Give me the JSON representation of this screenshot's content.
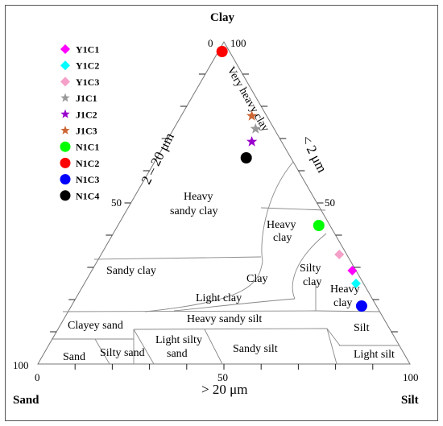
{
  "chart_data": {
    "type": "scatter",
    "subtype": "ternary",
    "corners": {
      "top": "Clay",
      "left": "Sand",
      "right": "Silt"
    },
    "axis_titles": {
      "left": "2 – 20 μm",
      "right": "< 2 μm",
      "bottom": "> 20 μm"
    },
    "tick_labels": {
      "top_left": "0",
      "top_right": "100",
      "left_mid": "50",
      "right_mid": "50",
      "bottom_left_outer": "100",
      "bottom_left": "0",
      "bottom_mid": "50",
      "bottom_right": "100"
    },
    "regions": [
      {
        "name": "Very heavy clay",
        "rotated": true
      },
      {
        "name": "Heavy",
        "name2": "sandy clay"
      },
      {
        "name": "Heavy",
        "name2": "clay"
      },
      {
        "name": "Sandy clay"
      },
      {
        "name": "Clay"
      },
      {
        "name": "Silty",
        "name2": "clay"
      },
      {
        "name": "Heavy",
        "name2": "clay"
      },
      {
        "name": "Light clay"
      },
      {
        "name": "Clayey sand"
      },
      {
        "name": "Heavy sandy silt"
      },
      {
        "name": "Silt"
      },
      {
        "name": "Sand"
      },
      {
        "name": "Silty sand"
      },
      {
        "name": "Light silty",
        "name2": "sand"
      },
      {
        "name": "Sandy silt"
      },
      {
        "name": "Light silt"
      }
    ],
    "series": [
      {
        "name": "Y1C1",
        "marker": "diamond",
        "color": "#ff00ff",
        "clay": 29,
        "silt": 70
      },
      {
        "name": "Y1C2",
        "marker": "diamond",
        "color": "#00ffff",
        "clay": 25,
        "silt": 73
      },
      {
        "name": "Y1C3",
        "marker": "diamond",
        "color": "#f5a0c8",
        "clay": 34,
        "silt": 64
      },
      {
        "name": "J1C1",
        "marker": "star",
        "color": "#999999",
        "clay": 73,
        "silt": 22
      },
      {
        "name": "J1C2",
        "marker": "star",
        "color": "#9900cc",
        "clay": 69,
        "silt": 23
      },
      {
        "name": "J1C3",
        "marker": "star",
        "color": "#cc6633",
        "clay": 77,
        "silt": 19
      },
      {
        "name": "N1C1",
        "marker": "circle",
        "color": "#00ff00",
        "clay": 43,
        "silt": 54
      },
      {
        "name": "N1C2",
        "marker": "circle",
        "color": "#ff0000",
        "clay": 97,
        "silt": 1
      },
      {
        "name": "N1C3",
        "marker": "circle",
        "color": "#0000ff",
        "clay": 18,
        "silt": 78
      },
      {
        "name": "N1C4",
        "marker": "circle",
        "color": "#000000",
        "clay": 64,
        "silt": 24
      }
    ],
    "grid": false,
    "legend_position": "top-left"
  }
}
